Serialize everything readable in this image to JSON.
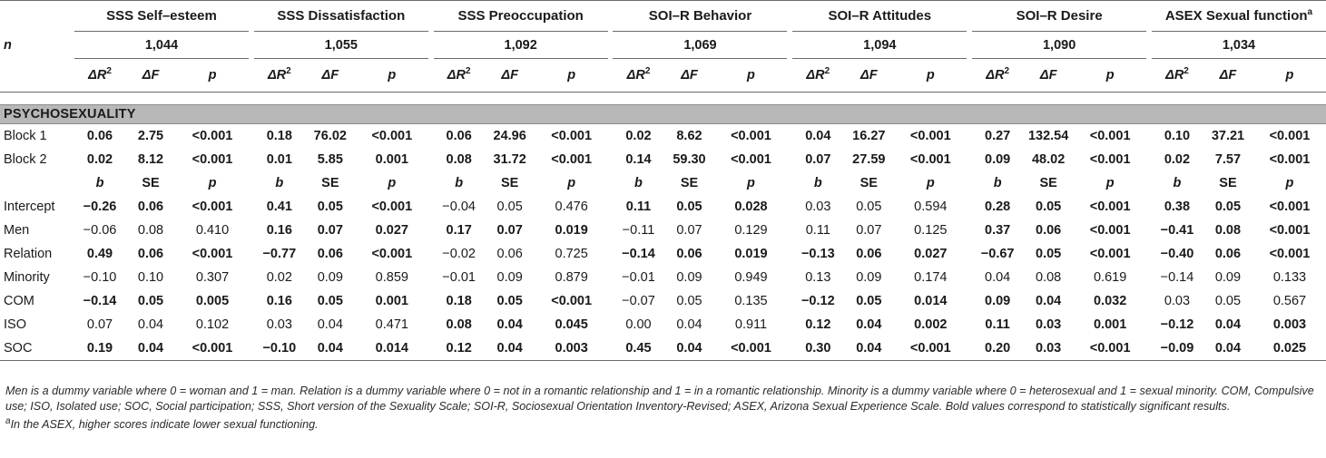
{
  "groups": [
    "SSS Self–esteem",
    "SSS Dissatisfaction",
    "SSS Preoccupation",
    "SOI–R Behavior",
    "SOI–R Attitudes",
    "SOI–R Desire",
    "ASEX Sexual function"
  ],
  "last_group_sup": "a",
  "n_label": "n",
  "n_values": [
    "1,044",
    "1,055",
    "1,092",
    "1,069",
    "1,094",
    "1,090",
    "1,034"
  ],
  "stat_headers": {
    "dr2_symbol": "ΔR",
    "dr2_exp": "2",
    "df": "ΔF",
    "p": "p"
  },
  "section": "PSYCHOSEXUALITY",
  "blocks": [
    {
      "label": "Block 1",
      "cells": [
        {
          "v": "0.06",
          "b": true
        },
        {
          "v": "2.75",
          "b": true
        },
        {
          "v": "<0.001",
          "b": true
        },
        {
          "v": "0.18",
          "b": true
        },
        {
          "v": "76.02",
          "b": true
        },
        {
          "v": "<0.001",
          "b": true
        },
        {
          "v": "0.06",
          "b": true
        },
        {
          "v": "24.96",
          "b": true
        },
        {
          "v": "<0.001",
          "b": true
        },
        {
          "v": "0.02",
          "b": true
        },
        {
          "v": "8.62",
          "b": true
        },
        {
          "v": "<0.001",
          "b": true
        },
        {
          "v": "0.04",
          "b": true
        },
        {
          "v": "16.27",
          "b": true
        },
        {
          "v": "<0.001",
          "b": true
        },
        {
          "v": "0.27",
          "b": true
        },
        {
          "v": "132.54",
          "b": true
        },
        {
          "v": "<0.001",
          "b": true
        },
        {
          "v": "0.10",
          "b": true
        },
        {
          "v": "37.21",
          "b": true
        },
        {
          "v": "<0.001",
          "b": true
        }
      ]
    },
    {
      "label": "Block 2",
      "cells": [
        {
          "v": "0.02",
          "b": true
        },
        {
          "v": "8.12",
          "b": true
        },
        {
          "v": "<0.001",
          "b": true
        },
        {
          "v": "0.01",
          "b": true
        },
        {
          "v": "5.85",
          "b": true
        },
        {
          "v": "0.001",
          "b": true
        },
        {
          "v": "0.08",
          "b": true
        },
        {
          "v": "31.72",
          "b": true
        },
        {
          "v": "<0.001",
          "b": true
        },
        {
          "v": "0.14",
          "b": true
        },
        {
          "v": "59.30",
          "b": true
        },
        {
          "v": "<0.001",
          "b": true
        },
        {
          "v": "0.07",
          "b": true
        },
        {
          "v": "27.59",
          "b": true
        },
        {
          "v": "<0.001",
          "b": true
        },
        {
          "v": "0.09",
          "b": true
        },
        {
          "v": "48.02",
          "b": true
        },
        {
          "v": "<0.001",
          "b": true
        },
        {
          "v": "0.02",
          "b": true
        },
        {
          "v": "7.57",
          "b": true
        },
        {
          "v": "<0.001",
          "b": true
        }
      ]
    }
  ],
  "coef_headers": {
    "b": "b",
    "se": "SE",
    "p": "p"
  },
  "coefficients": [
    {
      "label": "Intercept",
      "cells": [
        {
          "v": "−0.26",
          "b": true
        },
        {
          "v": "0.06",
          "b": true
        },
        {
          "v": "<0.001",
          "b": true
        },
        {
          "v": "0.41",
          "b": true
        },
        {
          "v": "0.05",
          "b": true
        },
        {
          "v": "<0.001",
          "b": true
        },
        {
          "v": "−0.04",
          "b": false
        },
        {
          "v": "0.05",
          "b": false
        },
        {
          "v": "0.476",
          "b": false
        },
        {
          "v": "0.11",
          "b": true
        },
        {
          "v": "0.05",
          "b": true
        },
        {
          "v": "0.028",
          "b": true
        },
        {
          "v": "0.03",
          "b": false
        },
        {
          "v": "0.05",
          "b": false
        },
        {
          "v": "0.594",
          "b": false
        },
        {
          "v": "0.28",
          "b": true
        },
        {
          "v": "0.05",
          "b": true
        },
        {
          "v": "<0.001",
          "b": true
        },
        {
          "v": "0.38",
          "b": true
        },
        {
          "v": "0.05",
          "b": true
        },
        {
          "v": "<0.001",
          "b": true
        }
      ]
    },
    {
      "label": "Men",
      "cells": [
        {
          "v": "−0.06",
          "b": false
        },
        {
          "v": "0.08",
          "b": false
        },
        {
          "v": "0.410",
          "b": false
        },
        {
          "v": "0.16",
          "b": true
        },
        {
          "v": "0.07",
          "b": true
        },
        {
          "v": "0.027",
          "b": true
        },
        {
          "v": "0.17",
          "b": true
        },
        {
          "v": "0.07",
          "b": true
        },
        {
          "v": "0.019",
          "b": true
        },
        {
          "v": "−0.11",
          "b": false
        },
        {
          "v": "0.07",
          "b": false
        },
        {
          "v": "0.129",
          "b": false
        },
        {
          "v": "0.11",
          "b": false
        },
        {
          "v": "0.07",
          "b": false
        },
        {
          "v": "0.125",
          "b": false
        },
        {
          "v": "0.37",
          "b": true
        },
        {
          "v": "0.06",
          "b": true
        },
        {
          "v": "<0.001",
          "b": true
        },
        {
          "v": "−0.41",
          "b": true
        },
        {
          "v": "0.08",
          "b": true
        },
        {
          "v": "<0.001",
          "b": true
        }
      ]
    },
    {
      "label": "Relation",
      "cells": [
        {
          "v": "0.49",
          "b": true
        },
        {
          "v": "0.06",
          "b": true
        },
        {
          "v": "<0.001",
          "b": true
        },
        {
          "v": "−0.77",
          "b": true
        },
        {
          "v": "0.06",
          "b": true
        },
        {
          "v": "<0.001",
          "b": true
        },
        {
          "v": "−0.02",
          "b": false
        },
        {
          "v": "0.06",
          "b": false
        },
        {
          "v": "0.725",
          "b": false
        },
        {
          "v": "−0.14",
          "b": true
        },
        {
          "v": "0.06",
          "b": true
        },
        {
          "v": "0.019",
          "b": true
        },
        {
          "v": "−0.13",
          "b": true
        },
        {
          "v": "0.06",
          "b": true
        },
        {
          "v": "0.027",
          "b": true
        },
        {
          "v": "−0.67",
          "b": true
        },
        {
          "v": "0.05",
          "b": true
        },
        {
          "v": "<0.001",
          "b": true
        },
        {
          "v": "−0.40",
          "b": true
        },
        {
          "v": "0.06",
          "b": true
        },
        {
          "v": "<0.001",
          "b": true
        }
      ]
    },
    {
      "label": "Minority",
      "cells": [
        {
          "v": "−0.10",
          "b": false
        },
        {
          "v": "0.10",
          "b": false
        },
        {
          "v": "0.307",
          "b": false
        },
        {
          "v": "0.02",
          "b": false
        },
        {
          "v": "0.09",
          "b": false
        },
        {
          "v": "0.859",
          "b": false
        },
        {
          "v": "−0.01",
          "b": false
        },
        {
          "v": "0.09",
          "b": false
        },
        {
          "v": "0.879",
          "b": false
        },
        {
          "v": "−0.01",
          "b": false
        },
        {
          "v": "0.09",
          "b": false
        },
        {
          "v": "0.949",
          "b": false
        },
        {
          "v": "0.13",
          "b": false
        },
        {
          "v": "0.09",
          "b": false
        },
        {
          "v": "0.174",
          "b": false
        },
        {
          "v": "0.04",
          "b": false
        },
        {
          "v": "0.08",
          "b": false
        },
        {
          "v": "0.619",
          "b": false
        },
        {
          "v": "−0.14",
          "b": false
        },
        {
          "v": "0.09",
          "b": false
        },
        {
          "v": "0.133",
          "b": false
        }
      ]
    },
    {
      "label": "COM",
      "cells": [
        {
          "v": "−0.14",
          "b": true
        },
        {
          "v": "0.05",
          "b": true
        },
        {
          "v": "0.005",
          "b": true
        },
        {
          "v": "0.16",
          "b": true
        },
        {
          "v": "0.05",
          "b": true
        },
        {
          "v": "0.001",
          "b": true
        },
        {
          "v": "0.18",
          "b": true
        },
        {
          "v": "0.05",
          "b": true
        },
        {
          "v": "<0.001",
          "b": true
        },
        {
          "v": "−0.07",
          "b": false
        },
        {
          "v": "0.05",
          "b": false
        },
        {
          "v": "0.135",
          "b": false
        },
        {
          "v": "−0.12",
          "b": true
        },
        {
          "v": "0.05",
          "b": true
        },
        {
          "v": "0.014",
          "b": true
        },
        {
          "v": "0.09",
          "b": true
        },
        {
          "v": "0.04",
          "b": true
        },
        {
          "v": "0.032",
          "b": true
        },
        {
          "v": "0.03",
          "b": false
        },
        {
          "v": "0.05",
          "b": false
        },
        {
          "v": "0.567",
          "b": false
        }
      ]
    },
    {
      "label": "ISO",
      "cells": [
        {
          "v": "0.07",
          "b": false
        },
        {
          "v": "0.04",
          "b": false
        },
        {
          "v": "0.102",
          "b": false
        },
        {
          "v": "0.03",
          "b": false
        },
        {
          "v": "0.04",
          "b": false
        },
        {
          "v": "0.471",
          "b": false
        },
        {
          "v": "0.08",
          "b": true
        },
        {
          "v": "0.04",
          "b": true
        },
        {
          "v": "0.045",
          "b": true
        },
        {
          "v": "0.00",
          "b": false
        },
        {
          "v": "0.04",
          "b": false
        },
        {
          "v": "0.911",
          "b": false
        },
        {
          "v": "0.12",
          "b": true
        },
        {
          "v": "0.04",
          "b": true
        },
        {
          "v": "0.002",
          "b": true
        },
        {
          "v": "0.11",
          "b": true
        },
        {
          "v": "0.03",
          "b": true
        },
        {
          "v": "0.001",
          "b": true
        },
        {
          "v": "−0.12",
          "b": true
        },
        {
          "v": "0.04",
          "b": true
        },
        {
          "v": "0.003",
          "b": true
        }
      ]
    },
    {
      "label": "SOC",
      "cells": [
        {
          "v": "0.19",
          "b": true
        },
        {
          "v": "0.04",
          "b": true
        },
        {
          "v": "<0.001",
          "b": true
        },
        {
          "v": "−0.10",
          "b": true
        },
        {
          "v": "0.04",
          "b": true
        },
        {
          "v": "0.014",
          "b": true
        },
        {
          "v": "0.12",
          "b": true
        },
        {
          "v": "0.04",
          "b": true
        },
        {
          "v": "0.003",
          "b": true
        },
        {
          "v": "0.45",
          "b": true
        },
        {
          "v": "0.04",
          "b": true
        },
        {
          "v": "<0.001",
          "b": true
        },
        {
          "v": "0.30",
          "b": true
        },
        {
          "v": "0.04",
          "b": true
        },
        {
          "v": "<0.001",
          "b": true
        },
        {
          "v": "0.20",
          "b": true
        },
        {
          "v": "0.03",
          "b": true
        },
        {
          "v": "<0.001",
          "b": true
        },
        {
          "v": "−0.09",
          "b": true
        },
        {
          "v": "0.04",
          "b": true
        },
        {
          "v": "0.025",
          "b": true
        }
      ]
    }
  ],
  "notes": {
    "main": "Men is a dummy variable where 0 = woman and 1 = man. Relation is a dummy variable where 0 = not in a romantic relationship and 1 = in a romantic relationship. Minority is a dummy variable where 0 = heterosexual and 1 = sexual minority. COM, Compulsive use; ISO, Isolated use; SOC, Social participation; SSS, Short version of the Sexuality Scale; SOI-R, Sociosexual Orientation Inventory-Revised; ASEX, Arizona Sexual Experience Scale. Bold values correspond to statistically significant results.",
    "footnote_mark": "a",
    "footnote": "In the ASEX, higher scores indicate lower sexual functioning."
  }
}
